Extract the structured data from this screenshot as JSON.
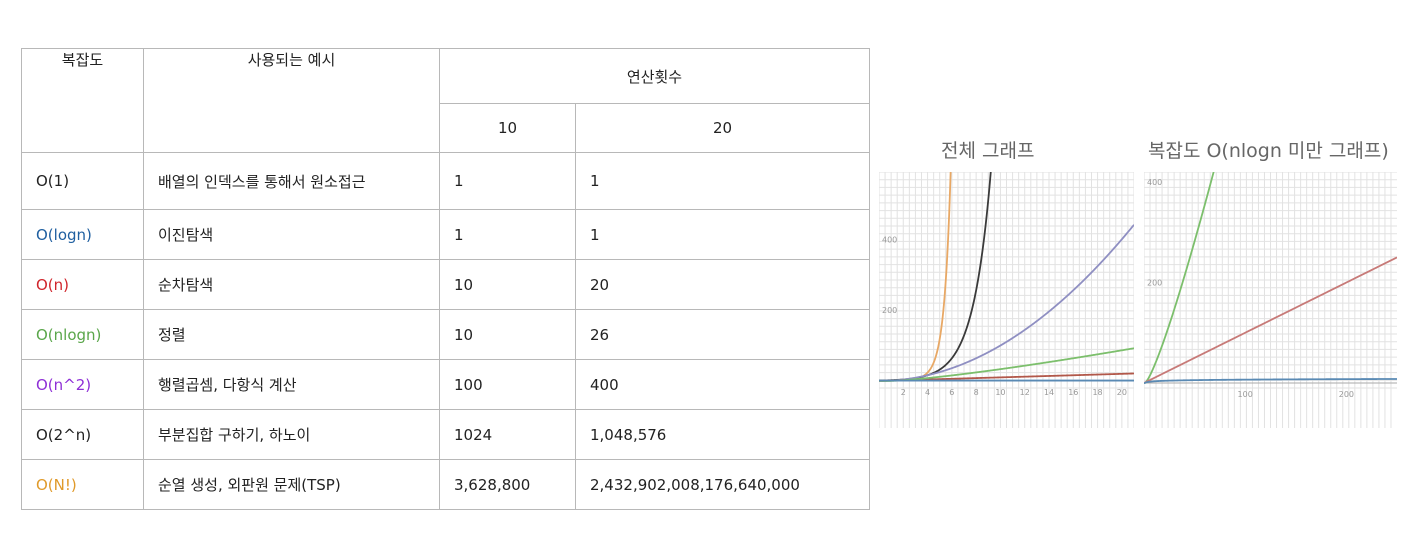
{
  "table": {
    "headers": {
      "complexity": "복잡도",
      "example": "사용되는 예시",
      "ops": "연산횟수",
      "n10": "10",
      "n20": "20"
    },
    "rows": [
      {
        "c": "O(1)",
        "color": "#222222",
        "e": "배열의 인덱스를 통해서 원소접근",
        "v10": "1",
        "v20": "1"
      },
      {
        "c": "O(logn)",
        "color": "#1f5fa0",
        "e": "이진탐색",
        "v10": "1",
        "v20": "1"
      },
      {
        "c": "O(n)",
        "color": "#d0252b",
        "e": "순차탐색",
        "v10": "10",
        "v20": "20"
      },
      {
        "c": "O(nlogn)",
        "color": "#5aa64a",
        "e": "정렬",
        "v10": "10",
        "v20": "26"
      },
      {
        "c": "O(n^2)",
        "color": "#8e2fd6",
        "e": "행렬곱셈, 다항식 계산",
        "v10": "100",
        "v20": "400"
      },
      {
        "c": "O(2^n)",
        "color": "#222222",
        "e": "부분집합 구하기, 하노이",
        "v10": "1024",
        "v20": "1,048,576"
      },
      {
        "c": "O(N!)",
        "color": "#e09a2a",
        "e": "순열 생성, 외판원 문제(TSP)",
        "v10": "3,628,800",
        "v20": "2,432,902,008,176,640,000"
      }
    ]
  },
  "chart_data": [
    {
      "type": "line",
      "title": "전체 그래프",
      "xlim": [
        0,
        21
      ],
      "ylim": [
        -20,
        590
      ],
      "x_ticks": [
        "2",
        "4",
        "6",
        "8",
        "10",
        "12",
        "14",
        "16",
        "18",
        "20"
      ],
      "y_ticks": [
        "200",
        "400"
      ],
      "grid": true,
      "series": [
        {
          "color": "#e8a865",
          "fn": "factorial"
        },
        {
          "color": "#3a3a3a",
          "fn": "exp2"
        },
        {
          "color": "#8f8fc2",
          "fn": "square"
        },
        {
          "color": "#b2584a",
          "fn": "linear"
        },
        {
          "color": "#7cbf6c",
          "fn": "nlogn"
        },
        {
          "color": "#5a8ab4",
          "fn": "const"
        }
      ]
    },
    {
      "type": "line",
      "title": "복잡도 O(nlogn 미만 그래프)",
      "xlim": [
        0,
        250
      ],
      "ylim": [
        -10,
        420
      ],
      "x_ticks": [
        "100",
        "200"
      ],
      "y_ticks": [
        "200",
        "400"
      ],
      "grid": true,
      "series": [
        {
          "color": "#7cbf6c",
          "fn": "nlogn"
        },
        {
          "color": "#c77a78",
          "fn": "linear"
        },
        {
          "color": "#5a8ab4",
          "fn": "log"
        }
      ]
    }
  ]
}
